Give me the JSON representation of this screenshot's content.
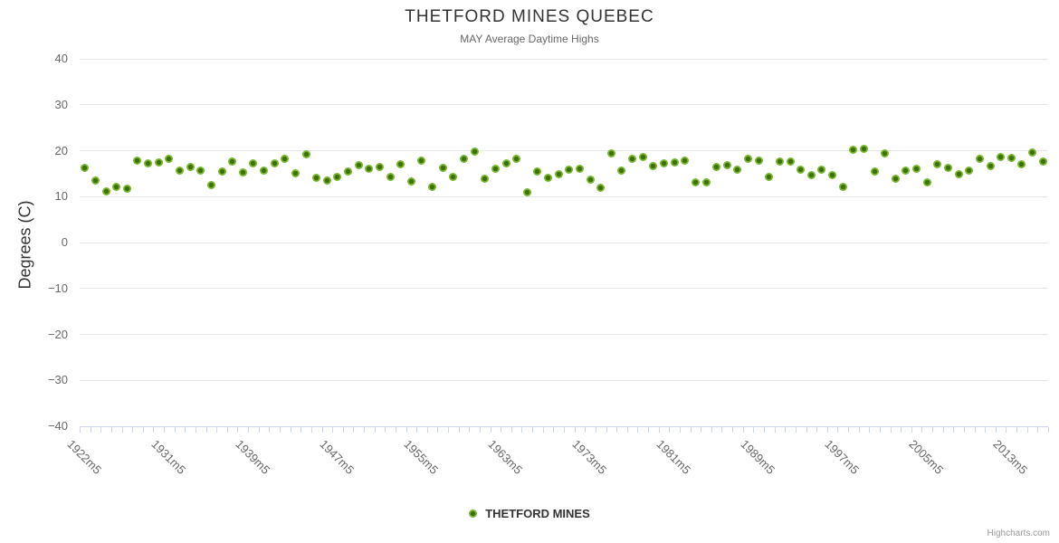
{
  "chart_data": {
    "type": "scatter",
    "title": "THETFORD MINES QUEBEC",
    "subtitle": "MAY Average Daytime Highs",
    "xlabel": "",
    "ylabel": "Degrees (C)",
    "ylim": [
      -40,
      40
    ],
    "y_ticks": [
      40,
      30,
      20,
      10,
      0,
      -10,
      -20,
      -30,
      -40
    ],
    "grid": true,
    "legend_position": "bottom-center",
    "x_tick_labels": [
      "1922m5",
      "1931m5",
      "1939m5",
      "1947m5",
      "1955m5",
      "1963m5",
      "1973m5",
      "1981m5",
      "1989m5",
      "1997m5",
      "2005m5",
      "2013m5"
    ],
    "x_tick_indices": [
      0,
      8,
      16,
      24,
      32,
      40,
      48,
      56,
      64,
      72,
      80,
      88
    ],
    "series": [
      {
        "name": "THETFORD MINES",
        "marker_color": "#74b82b",
        "marker_center_color": "#3e7004",
        "values": [
          16.3,
          13.4,
          11.1,
          12.1,
          11.7,
          17.9,
          17.3,
          17.4,
          18.3,
          15.6,
          16.4,
          15.6,
          12.6,
          15.4,
          17.6,
          15.2,
          17.2,
          15.6,
          17.3,
          18.2,
          15.1,
          19.2,
          14.1,
          13.5,
          14.3,
          15.4,
          16.8,
          16.1,
          16.4,
          14.2,
          17.0,
          13.3,
          17.9,
          12.1,
          16.2,
          14.3,
          18.3,
          19.8,
          13.9,
          16.0,
          17.2,
          18.2,
          11.0,
          15.5,
          14.0,
          14.9,
          15.9,
          16.1,
          13.7,
          12.0,
          19.4,
          15.6,
          18.3,
          18.7,
          16.6,
          17.2,
          17.4,
          17.9,
          13.1,
          13.1,
          16.4,
          16.9,
          15.9,
          18.3,
          17.9,
          14.2,
          17.7,
          17.6,
          15.8,
          14.7,
          15.8,
          14.6,
          12.1,
          20.2,
          20.4,
          15.5,
          19.5,
          13.9,
          15.7,
          16.1,
          13.2,
          17.1,
          16.2,
          14.8,
          15.7,
          18.3,
          16.6,
          18.7,
          18.5,
          17.0,
          19.7,
          17.7
        ]
      }
    ],
    "credit": "Highcharts.com"
  },
  "colors": {
    "title": "#333333",
    "subtitle": "#666666",
    "axis_label": "#666666",
    "grid": "#e6e6e6",
    "axis_line": "#ccd6eb",
    "legend_text": "#333333",
    "credits": "#999999",
    "background": "#ffffff"
  }
}
